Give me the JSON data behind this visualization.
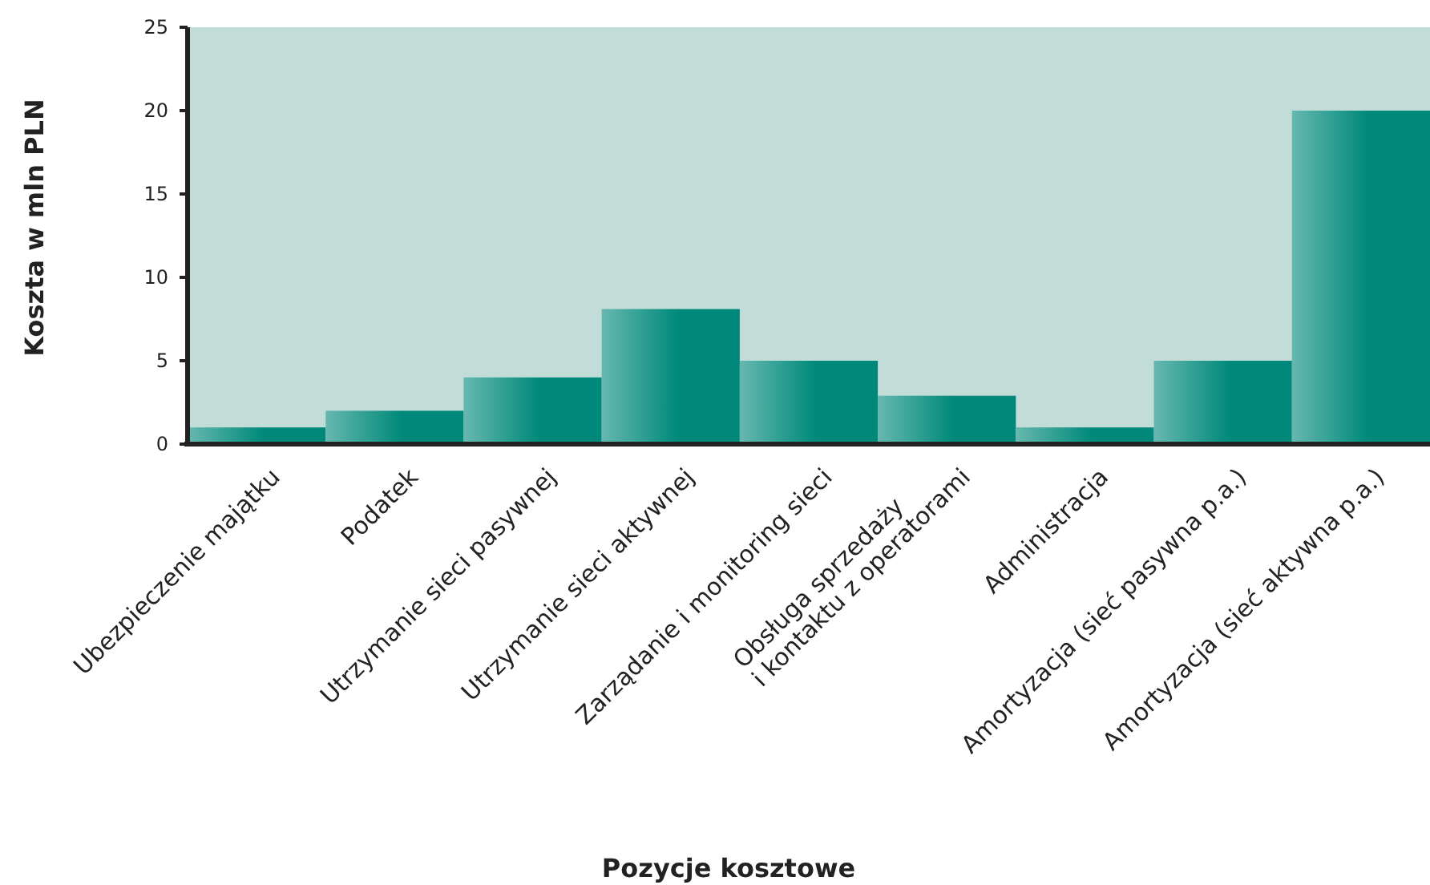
{
  "chart_data": {
    "type": "bar",
    "xlabel": "Pozycje kosztowe",
    "ylabel": "Koszta w mln PLN",
    "categories": [
      "Ubezpieczenie majątku",
      "Podatek",
      "Utrzymanie sieci pasywnej",
      "Utrzymanie sieci aktywnej",
      "Zarządanie i monitoring sieci",
      "Obsługa sprzedaży\ni kontaktu z operatorami",
      "Administracja",
      "Amortyzacja (sieć pasywna p.a.)",
      "Amortyzacja (sieć aktywna p.a.)"
    ],
    "values": [
      1,
      2,
      4,
      8.1,
      5,
      2.9,
      1,
      5,
      20
    ],
    "color": "#00897a",
    "ylim": [
      0,
      25
    ],
    "yticks": [
      0,
      5,
      10,
      15,
      20,
      25
    ],
    "grid": false
  }
}
